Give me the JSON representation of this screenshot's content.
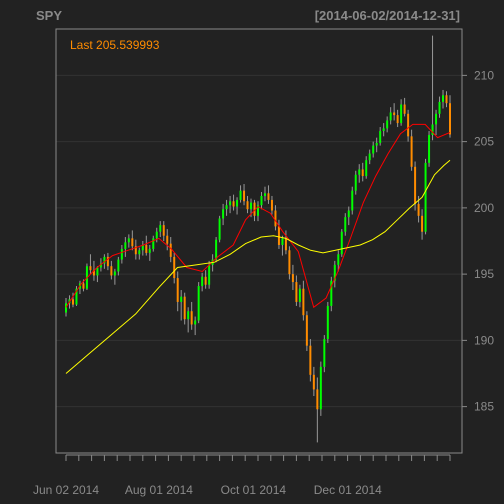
{
  "chart_data": {
    "type": "candlestick",
    "title": "SPY",
    "date_range": "[2014-06-02/2014-12-31]",
    "last_label": "Last 205.539993",
    "ylim": [
      181.5,
      213.5
    ],
    "y_ticks": [
      185,
      190,
      195,
      200,
      205,
      210
    ],
    "x_tick_labels": [
      "Jun 02 2014",
      "Aug 01 2014",
      "Oct 01 2014",
      "Dec 01 2014"
    ],
    "grid": true,
    "colors": {
      "background": "#222222",
      "frame": "#8a8a8a",
      "grid": "#333333",
      "text": "#8a8a8a",
      "last_label": "#ff8c00",
      "up": "#00ff00",
      "down": "#ff8c00",
      "wick": "#999999",
      "sma_fast": "#ff0000",
      "sma_slow": "#ffff00"
    },
    "series": [
      {
        "values": [
          [
            0,
            192.5
          ],
          [
            10,
            194.3
          ],
          [
            20,
            195.5
          ],
          [
            30,
            196.4
          ],
          [
            40,
            196.8
          ],
          [
            50,
            197.2
          ],
          [
            60,
            197.7
          ],
          [
            68,
            196.9
          ],
          [
            78,
            195.5
          ],
          [
            88,
            195.2
          ],
          [
            98,
            196.3
          ],
          [
            108,
            197.2
          ],
          [
            116,
            199.1
          ],
          [
            124,
            200.1
          ],
          [
            132,
            199.6
          ],
          [
            140,
            198.2
          ],
          [
            150,
            196.7
          ],
          [
            160,
            192.5
          ],
          [
            168,
            193.2
          ],
          [
            176,
            195.3
          ],
          [
            184,
            197.8
          ],
          [
            192,
            200.4
          ],
          [
            200,
            202.4
          ],
          [
            208,
            204.1
          ],
          [
            216,
            205.6
          ],
          [
            224,
            206.3
          ],
          [
            232,
            206.3
          ],
          [
            240,
            205.3
          ],
          [
            248,
            205.7
          ]
        ]
      },
      {
        "values": [
          [
            0,
            187.5
          ],
          [
            15,
            189.0
          ],
          [
            30,
            190.5
          ],
          [
            45,
            192.0
          ],
          [
            60,
            194.0
          ],
          [
            72,
            195.5
          ],
          [
            84,
            195.7
          ],
          [
            96,
            195.9
          ],
          [
            106,
            196.5
          ],
          [
            116,
            197.3
          ],
          [
            126,
            197.8
          ],
          [
            134,
            197.9
          ],
          [
            142,
            197.7
          ],
          [
            150,
            197.2
          ],
          [
            158,
            196.8
          ],
          [
            166,
            196.6
          ],
          [
            174,
            196.8
          ],
          [
            182,
            197.0
          ],
          [
            190,
            197.2
          ],
          [
            198,
            197.6
          ],
          [
            206,
            198.2
          ],
          [
            214,
            199.1
          ],
          [
            222,
            200.0
          ],
          [
            230,
            200.8
          ],
          [
            238,
            202.5
          ],
          [
            244,
            203.2
          ],
          [
            248,
            203.6
          ]
        ]
      }
    ],
    "candles": [
      [
        192.1,
        193.2,
        191.8,
        192.8
      ],
      [
        192.8,
        193.4,
        192.4,
        193.1
      ],
      [
        193.1,
        193.6,
        192.5,
        192.7
      ],
      [
        192.7,
        194.1,
        192.6,
        193.9
      ],
      [
        193.9,
        194.5,
        193.5,
        194.3
      ],
      [
        194.3,
        194.6,
        193.7,
        193.9
      ],
      [
        193.9,
        195.8,
        193.8,
        195.6
      ],
      [
        195.6,
        196.5,
        195.0,
        195.3
      ],
      [
        195.3,
        196.0,
        194.5,
        194.9
      ],
      [
        194.9,
        195.6,
        194.4,
        195.5
      ],
      [
        195.5,
        196.2,
        195.2,
        195.8
      ],
      [
        195.8,
        196.5,
        195.4,
        196.3
      ],
      [
        196.3,
        196.6,
        195.3,
        195.6
      ],
      [
        195.6,
        196.0,
        194.6,
        194.9
      ],
      [
        194.9,
        195.4,
        194.2,
        195.2
      ],
      [
        195.2,
        196.3,
        194.9,
        196.1
      ],
      [
        196.1,
        197.2,
        195.8,
        196.9
      ],
      [
        196.9,
        197.8,
        196.3,
        197.4
      ],
      [
        197.4,
        198.0,
        197.0,
        197.7
      ],
      [
        197.7,
        198.3,
        196.8,
        197.1
      ],
      [
        197.1,
        197.6,
        196.1,
        196.5
      ],
      [
        196.5,
        197.0,
        196.1,
        196.8
      ],
      [
        196.8,
        197.5,
        196.4,
        197.2
      ],
      [
        197.2,
        197.9,
        196.4,
        196.6
      ],
      [
        196.6,
        197.2,
        196.0,
        196.9
      ],
      [
        196.9,
        197.9,
        196.7,
        197.7
      ],
      [
        197.7,
        198.5,
        197.4,
        198.2
      ],
      [
        198.2,
        199.0,
        197.8,
        198.7
      ],
      [
        198.7,
        199.0,
        197.5,
        197.9
      ],
      [
        197.9,
        198.4,
        196.8,
        197.3
      ],
      [
        197.3,
        197.8,
        195.9,
        196.3
      ],
      [
        196.3,
        196.6,
        194.3,
        194.7
      ],
      [
        194.7,
        195.2,
        192.2,
        192.9
      ],
      [
        192.9,
        193.8,
        191.5,
        193.3
      ],
      [
        193.3,
        193.6,
        191.2,
        191.6
      ],
      [
        191.6,
        192.5,
        190.6,
        192.2
      ],
      [
        192.2,
        192.9,
        190.8,
        191.2
      ],
      [
        191.2,
        191.8,
        190.4,
        191.5
      ],
      [
        191.5,
        194.4,
        191.3,
        194.1
      ],
      [
        194.1,
        195.1,
        193.7,
        194.8
      ],
      [
        194.8,
        195.3,
        193.9,
        194.2
      ],
      [
        194.2,
        196.0,
        193.9,
        195.7
      ],
      [
        195.7,
        196.5,
        195.2,
        196.1
      ],
      [
        196.1,
        197.8,
        195.9,
        197.6
      ],
      [
        197.6,
        199.4,
        197.4,
        199.2
      ],
      [
        199.2,
        200.3,
        198.7,
        199.9
      ],
      [
        199.9,
        200.6,
        199.4,
        200.2
      ],
      [
        200.2,
        200.9,
        199.6,
        200.5
      ],
      [
        200.5,
        201.0,
        199.8,
        200.1
      ],
      [
        200.1,
        200.8,
        199.5,
        200.6
      ],
      [
        200.6,
        201.7,
        200.4,
        201.3
      ],
      [
        201.3,
        201.8,
        200.2,
        200.5
      ],
      [
        200.5,
        200.9,
        199.6,
        199.9
      ],
      [
        199.9,
        200.7,
        199.3,
        200.4
      ],
      [
        200.4,
        200.6,
        199.0,
        199.4
      ],
      [
        199.4,
        200.5,
        199.0,
        200.2
      ],
      [
        200.2,
        201.2,
        199.9,
        200.9
      ],
      [
        200.9,
        201.6,
        200.5,
        201.1
      ],
      [
        201.1,
        201.7,
        200.3,
        200.6
      ],
      [
        200.6,
        200.9,
        199.5,
        199.8
      ],
      [
        199.8,
        200.2,
        198.3,
        198.6
      ],
      [
        198.6,
        199.1,
        196.9,
        197.2
      ],
      [
        197.2,
        197.9,
        196.4,
        197.7
      ],
      [
        197.7,
        198.3,
        196.5,
        196.8
      ],
      [
        196.8,
        197.1,
        194.6,
        195.0
      ],
      [
        195.0,
        195.7,
        193.8,
        194.4
      ],
      [
        194.4,
        194.9,
        192.6,
        192.9
      ],
      [
        192.9,
        194.2,
        192.5,
        193.9
      ],
      [
        193.9,
        194.5,
        191.5,
        191.9
      ],
      [
        191.9,
        192.2,
        189.2,
        189.6
      ],
      [
        189.6,
        190.1,
        186.9,
        187.4
      ],
      [
        187.4,
        188.0,
        185.8,
        186.3
      ],
      [
        186.3,
        187.2,
        182.3,
        184.8
      ],
      [
        184.8,
        188.4,
        184.3,
        188.0
      ],
      [
        188.0,
        190.4,
        187.6,
        190.1
      ],
      [
        190.1,
        192.9,
        189.8,
        192.6
      ],
      [
        192.6,
        194.8,
        192.2,
        194.5
      ],
      [
        194.5,
        196.0,
        194.0,
        195.7
      ],
      [
        195.7,
        196.8,
        195.2,
        196.5
      ],
      [
        196.5,
        198.4,
        196.3,
        198.2
      ],
      [
        198.2,
        199.6,
        197.9,
        199.3
      ],
      [
        199.3,
        200.1,
        198.7,
        199.8
      ],
      [
        199.8,
        201.6,
        199.5,
        201.3
      ],
      [
        201.3,
        202.8,
        201.0,
        202.5
      ],
      [
        202.5,
        203.3,
        201.9,
        202.9
      ],
      [
        202.9,
        203.4,
        202.0,
        202.4
      ],
      [
        202.4,
        203.9,
        202.2,
        203.6
      ],
      [
        203.6,
        204.4,
        203.3,
        204.1
      ],
      [
        204.1,
        205.0,
        203.8,
        204.7
      ],
      [
        204.7,
        205.3,
        204.2,
        204.9
      ],
      [
        204.9,
        206.1,
        204.7,
        205.8
      ],
      [
        205.8,
        206.4,
        205.4,
        206.0
      ],
      [
        206.0,
        206.9,
        205.7,
        206.6
      ],
      [
        206.6,
        207.6,
        206.3,
        207.2
      ],
      [
        207.2,
        207.9,
        206.6,
        207.0
      ],
      [
        207.0,
        207.4,
        206.1,
        206.4
      ],
      [
        206.4,
        208.2,
        206.2,
        207.8
      ],
      [
        207.8,
        208.3,
        206.9,
        207.1
      ],
      [
        207.1,
        207.4,
        205.0,
        205.4
      ],
      [
        205.4,
        205.9,
        202.8,
        203.1
      ],
      [
        203.1,
        203.5,
        199.8,
        200.3
      ],
      [
        200.3,
        200.9,
        198.9,
        199.4
      ],
      [
        199.4,
        199.9,
        197.6,
        198.2
      ],
      [
        198.2,
        203.7,
        198.0,
        203.4
      ],
      [
        203.4,
        205.8,
        203.1,
        205.5
      ],
      [
        205.5,
        213.0,
        205.1,
        206.3
      ],
      [
        206.3,
        207.4,
        205.5,
        207.1
      ],
      [
        207.1,
        208.4,
        206.8,
        208.0
      ],
      [
        208.0,
        208.9,
        207.5,
        208.5
      ],
      [
        208.5,
        208.8,
        207.6,
        207.9
      ],
      [
        207.9,
        208.5,
        205.3,
        205.54
      ]
    ]
  }
}
